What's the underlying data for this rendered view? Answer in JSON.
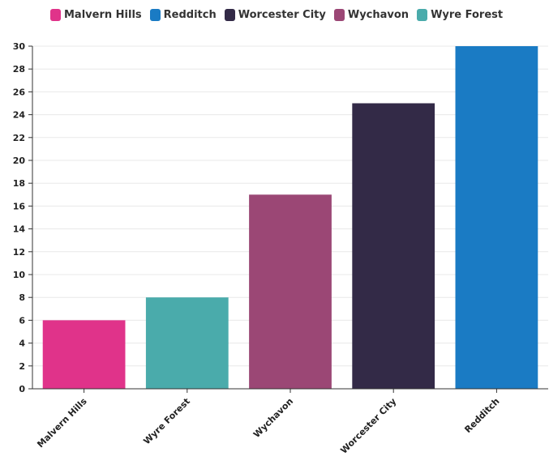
{
  "chart_data": {
    "type": "bar",
    "categories": [
      "Malvern Hills",
      "Wyre Forest",
      "Wychavon",
      "Worcester City",
      "Redditch"
    ],
    "values": [
      6,
      8,
      17,
      25,
      30
    ],
    "colors": [
      "#e0338a",
      "#4aabab",
      "#9b4775",
      "#332a47",
      "#1a7bc4"
    ],
    "ylim": [
      0,
      30
    ],
    "yticks": [
      0,
      2,
      4,
      6,
      8,
      10,
      12,
      14,
      16,
      18,
      20,
      22,
      24,
      26,
      28,
      30
    ],
    "grid": true,
    "legend_position": "top",
    "legend": [
      {
        "name": "Malvern Hills",
        "color": "#e0338a"
      },
      {
        "name": "Redditch",
        "color": "#1a7bc4"
      },
      {
        "name": "Worcester City",
        "color": "#332a47"
      },
      {
        "name": "Wychavon",
        "color": "#9b4775"
      },
      {
        "name": "Wyre Forest",
        "color": "#4aabab"
      }
    ]
  }
}
